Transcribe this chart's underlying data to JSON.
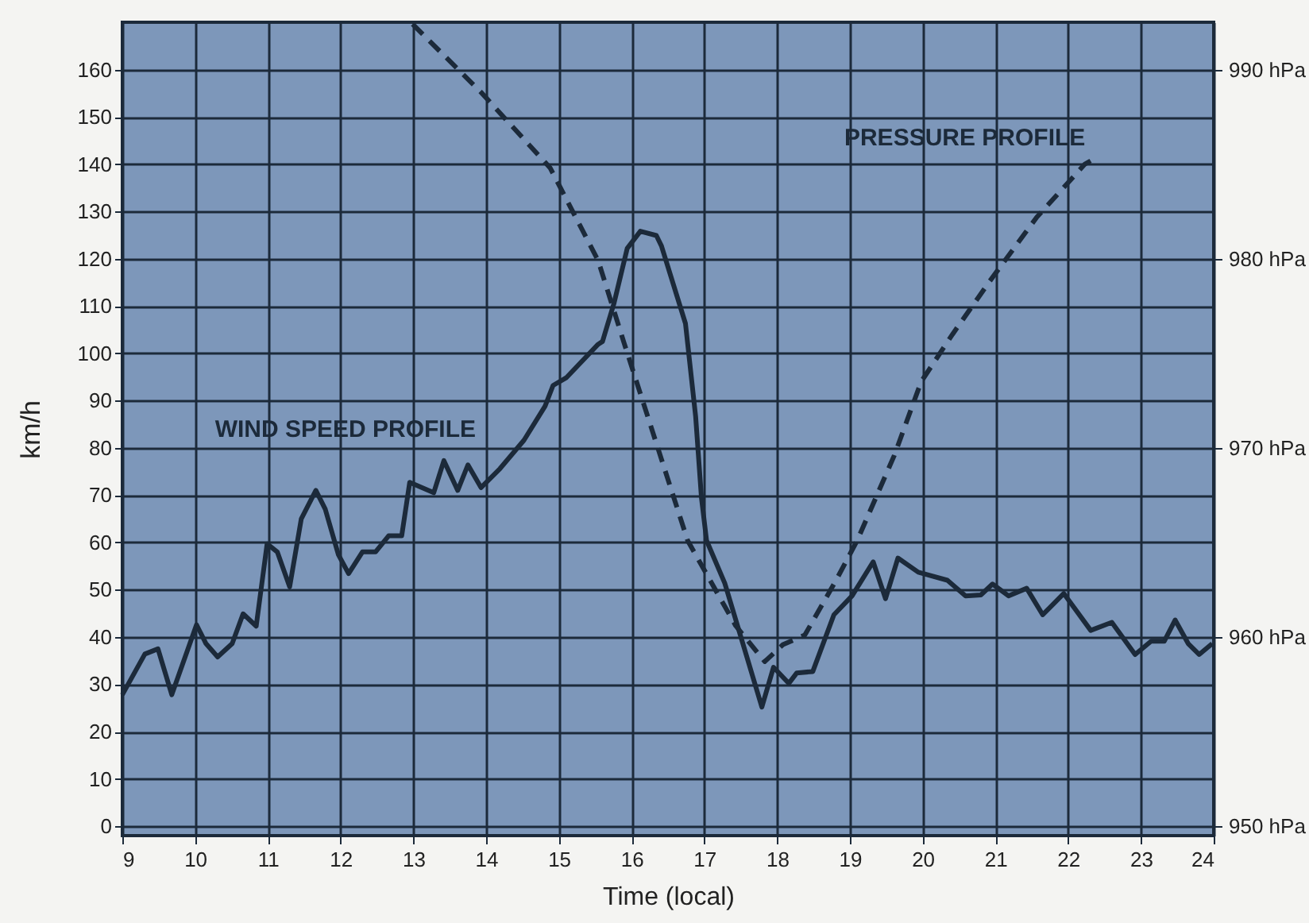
{
  "chart_data": {
    "type": "line",
    "xlabel": "Time (local)",
    "ylabel": "km/h",
    "xlim": [
      9,
      24
    ],
    "xticks": [
      9,
      10,
      11,
      12,
      13,
      14,
      15,
      16,
      17,
      18,
      19,
      20,
      21,
      22,
      23,
      24
    ],
    "ylim": [
      -2,
      170
    ],
    "yticks": [
      0,
      10,
      20,
      30,
      40,
      50,
      60,
      70,
      80,
      90,
      100,
      110,
      120,
      130,
      140,
      150,
      160
    ],
    "y2lim": [
      949.5,
      992.5
    ],
    "y2ticks": [
      {
        "value": 950,
        "label": "950 hPa"
      },
      {
        "value": 960,
        "label": "960 hPa"
      },
      {
        "value": 970,
        "label": "970 hPa"
      },
      {
        "value": 980,
        "label": "980 hPa"
      },
      {
        "value": 990,
        "label": "990 hPa"
      }
    ],
    "grid": true,
    "marker": "none",
    "series": [
      {
        "name": "WIND SPEED PROFILE",
        "color": "#1c2a3a",
        "line_style": "solid",
        "x": [
          9.0,
          9.31,
          9.49,
          9.68,
          10.02,
          10.15,
          10.31,
          10.51,
          10.66,
          10.84,
          10.99,
          11.13,
          11.3,
          11.46,
          11.66,
          11.79,
          11.97,
          12.11,
          12.3,
          12.48,
          12.66,
          12.84,
          12.95,
          13.28,
          13.42,
          13.61,
          13.75,
          13.93,
          14.19,
          14.52,
          14.81,
          14.92,
          15.1,
          15.54,
          15.6,
          15.76,
          15.94,
          16.12,
          16.34,
          16.41,
          16.74,
          16.88,
          16.96,
          17.03,
          17.28,
          17.79,
          17.95,
          18.16,
          18.27,
          18.49,
          18.78,
          19.03,
          19.32,
          19.49,
          19.66,
          19.94,
          20.34,
          20.59,
          20.8,
          20.96,
          21.18,
          21.43,
          21.65,
          21.94,
          22.31,
          22.6,
          22.92,
          23.14,
          23.32,
          23.47,
          23.65,
          23.8,
          23.98
        ],
        "values": [
          27.8,
          36.4,
          37.5,
          27.8,
          42.6,
          38.6,
          35.8,
          38.6,
          44.9,
          42.3,
          59.7,
          58,
          50.6,
          65,
          71,
          67,
          57.4,
          53.4,
          58,
          58,
          61.4,
          61.4,
          72.7,
          70.5,
          77.3,
          71,
          76.4,
          71.6,
          75.6,
          81.6,
          88.8,
          93.2,
          94.8,
          101.9,
          102.5,
          110.7,
          122.2,
          125.8,
          124.9,
          122.7,
          106.3,
          86.6,
          69.4,
          60.4,
          51.4,
          25.2,
          33.6,
          30.2,
          32.4,
          32.7,
          44.7,
          48.7,
          55.9,
          48.1,
          56.7,
          53.7,
          52,
          48.7,
          48.9,
          51.2,
          48.7,
          50.3,
          44.7,
          49.2,
          41.4,
          43.1,
          36.3,
          39.1,
          39.1,
          43.6,
          38.6,
          36.3,
          38.6
        ]
      },
      {
        "name": "PRESSURE PROFILE",
        "color": "#1c2a3a",
        "line_style": "dashed",
        "axis": "y2",
        "x": [
          12.99,
          13.93,
          14.88,
          15.54,
          15.9,
          16.41,
          16.77,
          16.99,
          17.43,
          17.83,
          18.08,
          18.38,
          18.81,
          19.1,
          19.61,
          19.98,
          20.41,
          20.92,
          21.57,
          22.23,
          22.41
        ],
        "values": [
          992.4,
          988.8,
          984.8,
          979.9,
          975.5,
          969.4,
          965.1,
          963.6,
          960.6,
          958.7,
          959.6,
          960.1,
          963,
          965.1,
          969.6,
          973.5,
          976,
          978.8,
          982.2,
          985,
          985.4
        ]
      }
    ]
  }
}
